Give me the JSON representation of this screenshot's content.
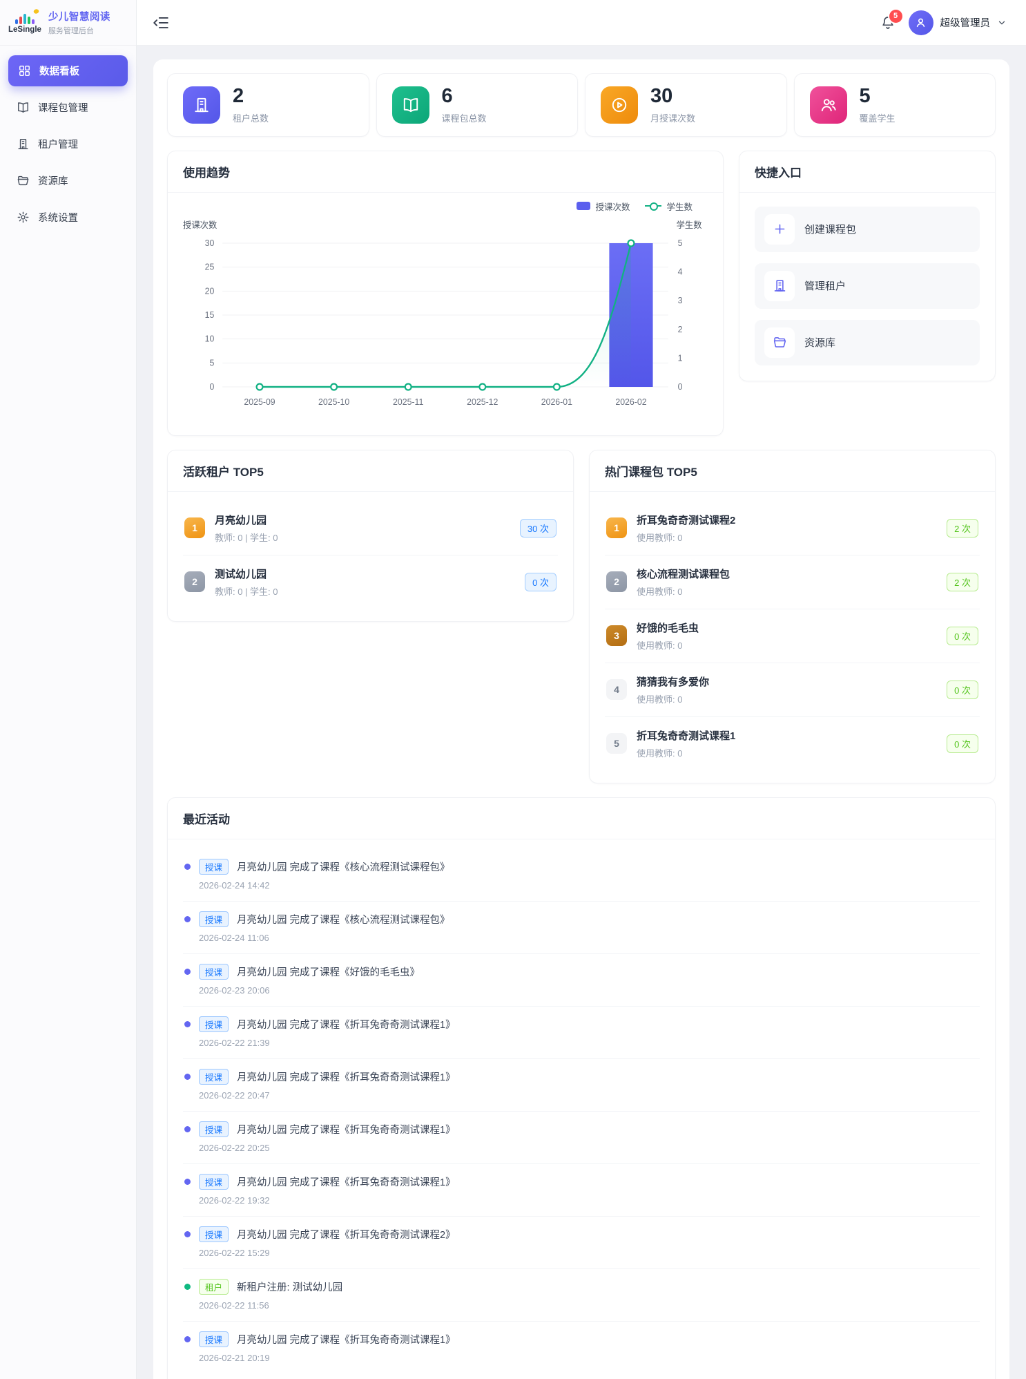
{
  "brand": {
    "logo_text": "LeSingle",
    "title": "少儿智慧阅读",
    "subtitle": "服务管理后台"
  },
  "header": {
    "notification_count": "5",
    "user_name": "超级管理员"
  },
  "sidebar": {
    "items": [
      {
        "label": "数据看板",
        "icon": "dashboard",
        "active": true
      },
      {
        "label": "课程包管理",
        "icon": "book",
        "active": false
      },
      {
        "label": "租户管理",
        "icon": "building",
        "active": false
      },
      {
        "label": "资源库",
        "icon": "folder",
        "active": false
      },
      {
        "label": "系统设置",
        "icon": "gear",
        "active": false
      }
    ]
  },
  "stats": [
    {
      "value": "2",
      "label": "租户总数",
      "icon": "building",
      "color_from": "#6e6bf8",
      "color_to": "#5457e8"
    },
    {
      "value": "6",
      "label": "课程包总数",
      "icon": "book",
      "color_from": "#1fc08e",
      "color_to": "#0ca678"
    },
    {
      "value": "30",
      "label": "月授课次数",
      "icon": "play-circle",
      "color_from": "#f9a826",
      "color_to": "#ee8b0c"
    },
    {
      "value": "5",
      "label": "覆盖学生",
      "icon": "users",
      "color_from": "#f0519b",
      "color_to": "#df2579"
    }
  ],
  "trend_card": {
    "title": "使用趋势"
  },
  "chart_data": {
    "type": "bar",
    "subtype": "bar + line combo, dual y-axis",
    "categories": [
      "2025-09",
      "2025-10",
      "2025-11",
      "2025-12",
      "2026-01",
      "2026-02"
    ],
    "series": [
      {
        "name": "授课次数",
        "type": "bar",
        "axis": "left",
        "color": "#5b5fee",
        "values": [
          0,
          0,
          0,
          0,
          0,
          30
        ]
      },
      {
        "name": "学生数",
        "type": "line",
        "axis": "right",
        "color": "#12b184",
        "values": [
          0,
          0,
          0,
          0,
          0,
          5
        ]
      }
    ],
    "left_axis": {
      "title": "授课次数",
      "min": 0,
      "max": 30,
      "ticks": [
        0,
        5,
        10,
        15,
        20,
        25,
        30
      ]
    },
    "right_axis": {
      "title": "学生数",
      "min": 0,
      "max": 5,
      "ticks": [
        0,
        1,
        2,
        3,
        4,
        5
      ]
    },
    "legend_position": "top-right",
    "grid": "horizontal gridlines only"
  },
  "quick_card": {
    "title": "快捷入口",
    "items": [
      {
        "label": "创建课程包",
        "icon": "plus"
      },
      {
        "label": "管理租户",
        "icon": "building"
      },
      {
        "label": "资源库",
        "icon": "folder"
      }
    ]
  },
  "active_tenants": {
    "title": "活跃租户 TOP5",
    "items": [
      {
        "rank": "1",
        "name": "月亮幼儿园",
        "meta": "教师: 0 | 学生: 0",
        "count": "30 次"
      },
      {
        "rank": "2",
        "name": "测试幼儿园",
        "meta": "教师: 0 | 学生: 0",
        "count": "0 次"
      }
    ]
  },
  "hot_packages": {
    "title": "热门课程包 TOP5",
    "items": [
      {
        "rank": "1",
        "name": "折耳兔奇奇测试课程2",
        "meta": "使用教师: 0",
        "count": "2 次"
      },
      {
        "rank": "2",
        "name": "核心流程测试课程包",
        "meta": "使用教师: 0",
        "count": "2 次"
      },
      {
        "rank": "3",
        "name": "好饿的毛毛虫",
        "meta": "使用教师: 0",
        "count": "0 次"
      },
      {
        "rank": "4",
        "name": "猜猜我有多爱你",
        "meta": "使用教师: 0",
        "count": "0 次"
      },
      {
        "rank": "5",
        "name": "折耳兔奇奇测试课程1",
        "meta": "使用教师: 0",
        "count": "0 次"
      }
    ]
  },
  "activities": {
    "title": "最近活动",
    "items": [
      {
        "type": "teach",
        "badge": "授课",
        "text": "月亮幼儿园 完成了课程《核心流程测试课程包》",
        "time": "2026-02-24 14:42"
      },
      {
        "type": "teach",
        "badge": "授课",
        "text": "月亮幼儿园 完成了课程《核心流程测试课程包》",
        "time": "2026-02-24 11:06"
      },
      {
        "type": "teach",
        "badge": "授课",
        "text": "月亮幼儿园 完成了课程《好饿的毛毛虫》",
        "time": "2026-02-23 20:06"
      },
      {
        "type": "teach",
        "badge": "授课",
        "text": "月亮幼儿园 完成了课程《折耳兔奇奇测试课程1》",
        "time": "2026-02-22 21:39"
      },
      {
        "type": "teach",
        "badge": "授课",
        "text": "月亮幼儿园 完成了课程《折耳兔奇奇测试课程1》",
        "time": "2026-02-22 20:47"
      },
      {
        "type": "teach",
        "badge": "授课",
        "text": "月亮幼儿园 完成了课程《折耳兔奇奇测试课程1》",
        "time": "2026-02-22 20:25"
      },
      {
        "type": "teach",
        "badge": "授课",
        "text": "月亮幼儿园 完成了课程《折耳兔奇奇测试课程1》",
        "time": "2026-02-22 19:32"
      },
      {
        "type": "teach",
        "badge": "授课",
        "text": "月亮幼儿园 完成了课程《折耳兔奇奇测试课程2》",
        "time": "2026-02-22 15:29"
      },
      {
        "type": "tenant",
        "badge": "租户",
        "text": "新租户注册: 测试幼儿园",
        "time": "2026-02-22 11:56"
      },
      {
        "type": "teach",
        "badge": "授课",
        "text": "月亮幼儿园 完成了课程《折耳兔奇奇测试课程1》",
        "time": "2026-02-21 20:19"
      }
    ]
  },
  "colors": {
    "primary": "#5a5be9",
    "bar": "#5b5fee",
    "line": "#12b184",
    "badge_red": "#ff4d4f",
    "pill_blue": "#1677ff",
    "pill_green": "#52c41a"
  }
}
